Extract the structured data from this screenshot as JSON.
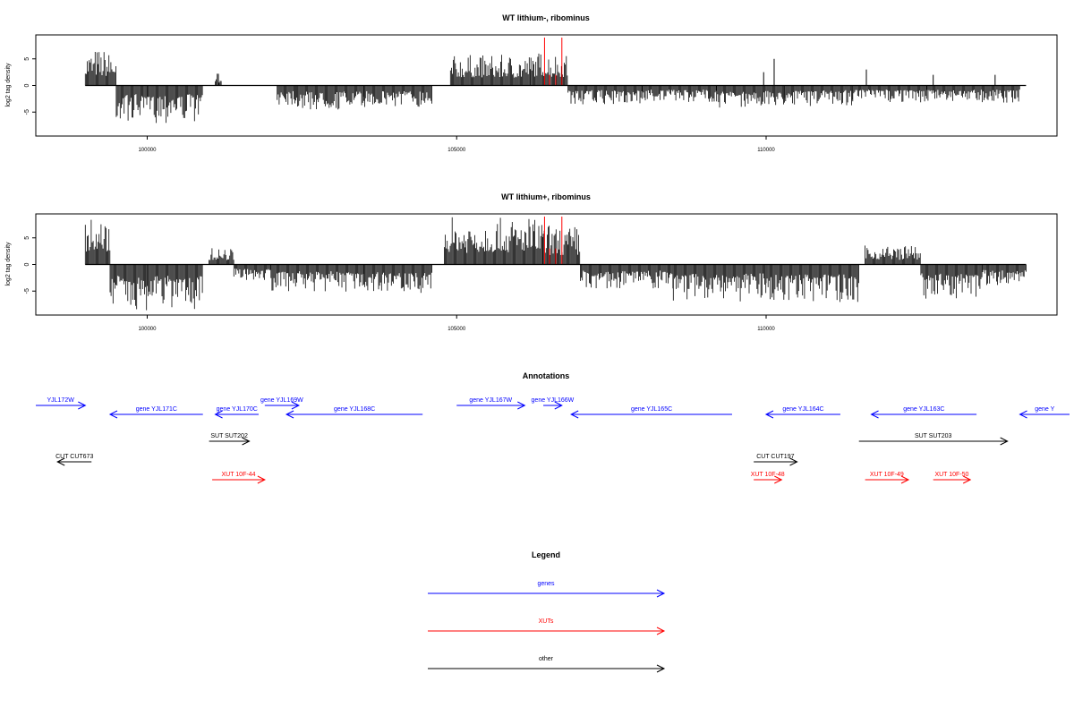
{
  "colors": {
    "genes": "#0000ff",
    "xuts": "#ff0000",
    "other": "#000000",
    "axis": "#000000"
  },
  "chart_data": [
    {
      "type": "bar",
      "title": "WT lithium-, ribominus",
      "ylabel": "log2 tag density",
      "xlim": [
        98200,
        114700
      ],
      "ylim": [
        -9.5,
        9.5
      ],
      "x_ticks": [
        100000,
        105000,
        110000
      ],
      "x_tick_labels": [
        "100000",
        "105000",
        "110000"
      ],
      "y_ticks": [
        -5,
        0,
        5
      ],
      "y_tick_labels": [
        "-5",
        "0",
        "5"
      ],
      "series": [
        {
          "segments": [
            {
              "x": [
                99000,
                99500
              ],
              "y": [
                0,
                6.5
              ]
            },
            {
              "x": [
                99500,
                100000
              ],
              "y": [
                0,
                -6.5
              ]
            },
            {
              "x": [
                100000,
                100900
              ],
              "y": [
                0,
                -6.5
              ]
            },
            {
              "x": [
                101100,
                101200
              ],
              "y": [
                0,
                2.2
              ]
            },
            {
              "x": [
                102100,
                102400
              ],
              "y": [
                0,
                -3.5
              ]
            },
            {
              "x": [
                102400,
                103500
              ],
              "y": [
                0,
                -4.5
              ]
            },
            {
              "x": [
                103500,
                104600
              ],
              "y": [
                0,
                -4.0
              ]
            },
            {
              "x": [
                104900,
                106200
              ],
              "y": [
                0,
                5.5
              ]
            },
            {
              "x": [
                106200,
                106800
              ],
              "y": [
                0,
                6.0
              ]
            },
            {
              "x": [
                106800,
                108000
              ],
              "y": [
                0,
                -3.5
              ]
            },
            {
              "x": [
                108000,
                109200
              ],
              "y": [
                0,
                -3.0
              ]
            },
            {
              "x": [
                109200,
                110300
              ],
              "y": [
                0,
                -4.0
              ]
            },
            {
              "x": [
                110300,
                111400
              ],
              "y": [
                0,
                -3.5
              ]
            },
            {
              "x": [
                111400,
                112600
              ],
              "y": [
                0,
                -3.0
              ]
            },
            {
              "x": [
                112600,
                114100
              ],
              "y": [
                0,
                -3.0
              ]
            }
          ]
        },
        {
          "name": "",
          "highlight": [
            {
              "x": 106420,
              "y": 9.0
            },
            {
              "x": 106500,
              "y": 2.0
            },
            {
              "x": 106600,
              "y": 2.0
            },
            {
              "x": 106700,
              "y": 9.0
            }
          ]
        },
        {
          "spikes": [
            {
              "x": 101150,
              "y": 2.2
            },
            {
              "x": 110130,
              "y": 5.0
            },
            {
              "x": 111620,
              "y": 3.0
            },
            {
              "x": 112700,
              "y": 2.0
            },
            {
              "x": 113700,
              "y": 2.0
            },
            {
              "x": 109960,
              "y": 2.5
            }
          ]
        }
      ]
    },
    {
      "type": "bar",
      "title": "WT lithium+, ribominus",
      "ylabel": "log2 tag density",
      "xlim": [
        98200,
        114700
      ],
      "ylim": [
        -9.5,
        9.5
      ],
      "x_ticks": [
        100000,
        105000,
        110000
      ],
      "x_tick_labels": [
        "100000",
        "105000",
        "110000"
      ],
      "y_ticks": [
        -5,
        0,
        5
      ],
      "y_tick_labels": [
        "-5",
        "0",
        "5"
      ],
      "series": [
        {
          "segments": [
            {
              "x": [
                99000,
                99400
              ],
              "y": [
                0,
                8.5
              ]
            },
            {
              "x": [
                99400,
                100000
              ],
              "y": [
                0,
                -8.0
              ]
            },
            {
              "x": [
                100000,
                100900
              ],
              "y": [
                0,
                -8.0
              ]
            },
            {
              "x": [
                101000,
                101400
              ],
              "y": [
                0,
                3.0
              ]
            },
            {
              "x": [
                101400,
                102000
              ],
              "y": [
                0,
                -3.0
              ]
            },
            {
              "x": [
                102000,
                103500
              ],
              "y": [
                0,
                -5.0
              ]
            },
            {
              "x": [
                103500,
                104600
              ],
              "y": [
                0,
                -5.0
              ]
            },
            {
              "x": [
                104800,
                106400
              ],
              "y": [
                0,
                8.5
              ]
            },
            {
              "x": [
                106400,
                107000
              ],
              "y": [
                0,
                7.0
              ]
            },
            {
              "x": [
                107000,
                108500
              ],
              "y": [
                0,
                -4.5
              ]
            },
            {
              "x": [
                108500,
                110000
              ],
              "y": [
                0,
                -6.5
              ]
            },
            {
              "x": [
                110000,
                111500
              ],
              "y": [
                0,
                -7.0
              ]
            },
            {
              "x": [
                111600,
                112500
              ],
              "y": [
                0,
                3.5
              ]
            },
            {
              "x": [
                112500,
                113500
              ],
              "y": [
                0,
                -6.0
              ]
            },
            {
              "x": [
                113500,
                114200
              ],
              "y": [
                0,
                -4.0
              ]
            }
          ]
        },
        {
          "name": "",
          "highlight": [
            {
              "x": 106420,
              "y": 9.0
            },
            {
              "x": 106500,
              "y": 3.0
            },
            {
              "x": 106600,
              "y": 3.0
            },
            {
              "x": 106700,
              "y": 9.0
            }
          ]
        }
      ]
    }
  ],
  "annotations": {
    "title": "Annotations",
    "items": [
      {
        "label": "YJL172W",
        "kind": "gene",
        "dir": "right",
        "row": 0,
        "x1": 98000,
        "x2": 99000
      },
      {
        "label": "gene YJL171C",
        "kind": "gene",
        "dir": "left",
        "row": 1,
        "x1": 99400,
        "x2": 100900
      },
      {
        "label": "gene YJL170C",
        "kind": "gene",
        "dir": "left",
        "row": 1,
        "x1": 101100,
        "x2": 101800
      },
      {
        "label": "gene YJL169W",
        "kind": "gene",
        "dir": "right",
        "row": 0,
        "x1": 101900,
        "x2": 102450
      },
      {
        "label": "gene YJL168C",
        "kind": "gene",
        "dir": "left",
        "row": 1,
        "x1": 102250,
        "x2": 104450
      },
      {
        "label": "gene YJL167W",
        "kind": "gene",
        "dir": "right",
        "row": 0,
        "x1": 105000,
        "x2": 106100
      },
      {
        "label": "gene YJL166W",
        "kind": "gene",
        "dir": "right",
        "row": 0,
        "x1": 106400,
        "x2": 106700
      },
      {
        "label": "gene YJL165C",
        "kind": "gene",
        "dir": "left",
        "row": 1,
        "x1": 106850,
        "x2": 109450
      },
      {
        "label": "gene YJL164C",
        "kind": "gene",
        "dir": "left",
        "row": 1,
        "x1": 110000,
        "x2": 111200
      },
      {
        "label": "gene YJL163C",
        "kind": "gene",
        "dir": "left",
        "row": 1,
        "x1": 111700,
        "x2": 113400
      },
      {
        "label": "gene Y",
        "kind": "gene",
        "dir": "left",
        "row": 1,
        "x1": 114100,
        "x2": 115000
      },
      {
        "label": "SUT SUT202",
        "kind": "other",
        "dir": "right",
        "row": 2,
        "x1": 101000,
        "x2": 101650
      },
      {
        "label": "SUT SUT203",
        "kind": "other",
        "dir": "right",
        "row": 2,
        "x1": 111500,
        "x2": 113900
      },
      {
        "label": "CUT CUT673",
        "kind": "other",
        "dir": "left",
        "row": 3,
        "x1": 98550,
        "x2": 99100
      },
      {
        "label": "CUT CUT197",
        "kind": "other",
        "dir": "right",
        "row": 3,
        "x1": 109800,
        "x2": 110500
      },
      {
        "label": "XUT 10F-44",
        "kind": "xut",
        "dir": "right",
        "row": 4,
        "x1": 101050,
        "x2": 101900
      },
      {
        "label": "XUT 10F-48",
        "kind": "xut",
        "dir": "right",
        "row": 4,
        "x1": 109800,
        "x2": 110250
      },
      {
        "label": "XUT 10F-49",
        "kind": "xut",
        "dir": "right",
        "row": 4,
        "x1": 111600,
        "x2": 112300
      },
      {
        "label": "XUT 10F-50",
        "kind": "xut",
        "dir": "right",
        "row": 4,
        "x1": 112700,
        "x2": 113300
      }
    ]
  },
  "legend": {
    "title": "Legend",
    "items": [
      {
        "label": "genes",
        "kind": "gene"
      },
      {
        "label": "XUTs",
        "kind": "xut"
      },
      {
        "label": "other",
        "kind": "other"
      }
    ]
  }
}
